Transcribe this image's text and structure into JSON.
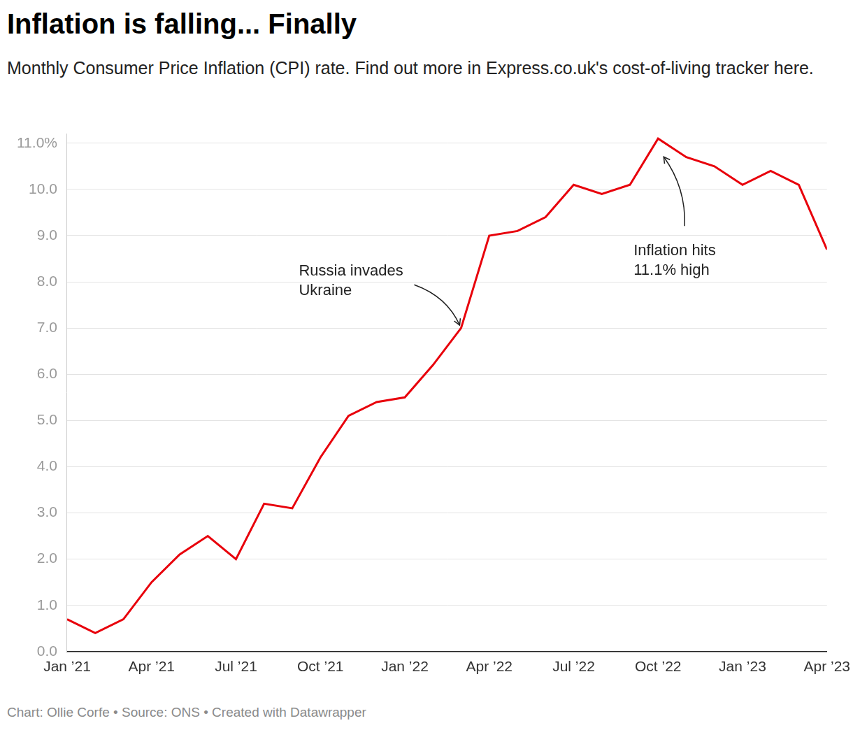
{
  "chart_data": {
    "type": "line",
    "title": "Inflation is falling... Finally",
    "subtitle": "Monthly Consumer Price Inflation (CPI) rate. Find out more in Express.co.uk's cost-of-living tracker here.",
    "source": "Chart: Ollie Corfe • Source: ONS • Created with Datawrapper",
    "categories": [
      "Jan ’21",
      null,
      null,
      "Apr ’21",
      null,
      null,
      "Jul ’21",
      null,
      null,
      "Oct ’21",
      null,
      null,
      "Jan ’22",
      null,
      null,
      "Apr ’22",
      null,
      null,
      "Jul ’22",
      null,
      null,
      "Oct ’22",
      null,
      null,
      "Jan ’23",
      null,
      null,
      "Apr ’23"
    ],
    "values": [
      0.7,
      0.4,
      0.7,
      1.5,
      2.1,
      2.5,
      2.0,
      3.2,
      3.1,
      4.2,
      5.1,
      5.4,
      5.5,
      6.2,
      7.0,
      9.0,
      9.1,
      9.4,
      10.1,
      9.9,
      10.1,
      11.1,
      10.7,
      10.5,
      10.1,
      10.4,
      10.1,
      8.7
    ],
    "color": "#e8000b",
    "marker": "none",
    "ylim": [
      0,
      11.2
    ],
    "yticks": [
      {
        "value": 0,
        "label": "0.0"
      },
      {
        "value": 1,
        "label": "1.0"
      },
      {
        "value": 2,
        "label": "2.0"
      },
      {
        "value": 3,
        "label": "3.0"
      },
      {
        "value": 4,
        "label": "4.0"
      },
      {
        "value": 5,
        "label": "5.0"
      },
      {
        "value": 6,
        "label": "6.0"
      },
      {
        "value": 7,
        "label": "7.0"
      },
      {
        "value": 8,
        "label": "8.0"
      },
      {
        "value": 9,
        "label": "9.0"
      },
      {
        "value": 10,
        "label": "10.0"
      },
      {
        "value": 11,
        "label": "11.0%"
      }
    ],
    "grid": true,
    "annotations": [
      {
        "lines": [
          "Russia invades",
          "Ukraine"
        ]
      },
      {
        "lines": [
          "Inflation hits",
          "11.1% high"
        ]
      }
    ]
  }
}
